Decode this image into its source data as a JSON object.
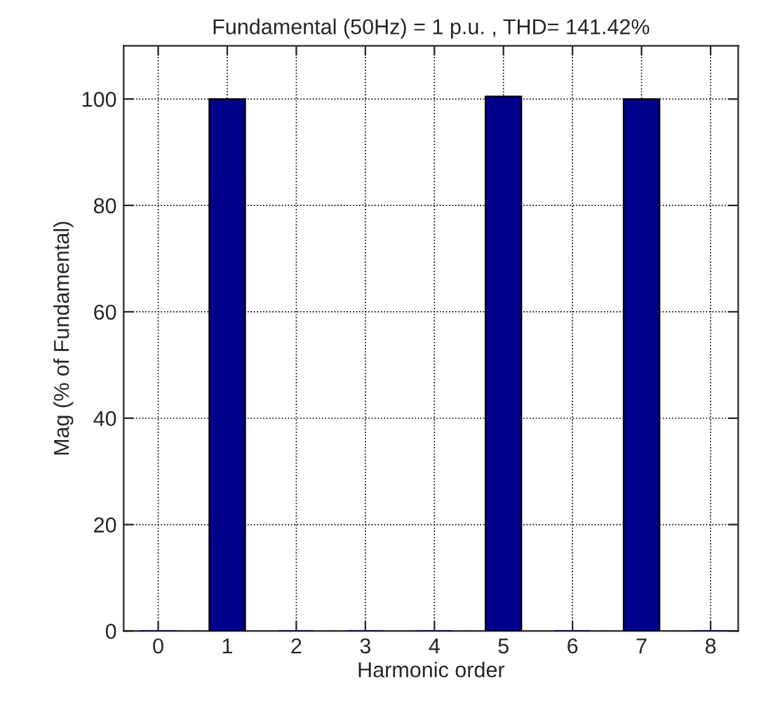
{
  "chart_data": {
    "type": "bar",
    "title": "Fundamental (50Hz) = 1 p.u. , THD= 141.42%",
    "xlabel": "Harmonic order",
    "ylabel": "Mag (% of Fundamental)",
    "x": [
      0,
      1,
      2,
      3,
      4,
      5,
      6,
      7,
      8
    ],
    "values": [
      0,
      100,
      0,
      0,
      0,
      100.5,
      0,
      100,
      0
    ],
    "color": "#00008b",
    "xlim": [
      -0.5,
      8.4
    ],
    "xticks": [
      0,
      1,
      2,
      3,
      4,
      5,
      6,
      7,
      8
    ],
    "ylim": [
      0,
      110
    ],
    "yticks": [
      0,
      20,
      40,
      60,
      80,
      100
    ],
    "grid": true
  }
}
